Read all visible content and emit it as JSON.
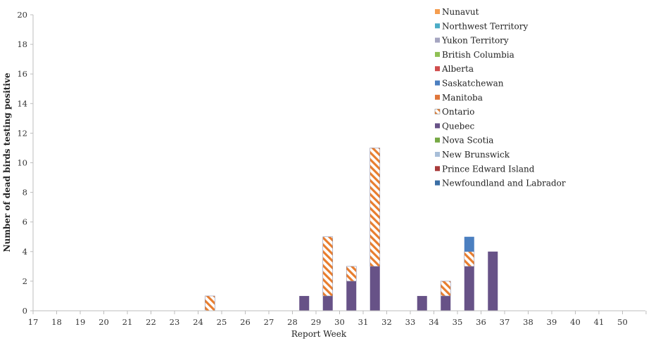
{
  "chart_data": {
    "type": "bar",
    "stacked": true,
    "title": "",
    "xlabel": "Report Week",
    "ylabel": "Number of dead birds testing positive",
    "ylim": [
      0,
      20
    ],
    "yticks": [
      0,
      2,
      4,
      6,
      8,
      10,
      12,
      14,
      16,
      18,
      20
    ],
    "grid": false,
    "legend_position": "top-right",
    "categories": [
      "17",
      "18",
      "19",
      "20",
      "21",
      "22",
      "23",
      "24",
      "25",
      "26",
      "27",
      "28",
      "29",
      "30",
      "31",
      "32",
      "33",
      "34",
      "35",
      "36",
      "37",
      "38",
      "39",
      "40",
      "41",
      "50"
    ],
    "series": [
      {
        "name": "Quebec",
        "color": "#675287",
        "pattern": "solid",
        "values": [
          0,
          0,
          0,
          0,
          0,
          0,
          0,
          0,
          0,
          0,
          0,
          1,
          1,
          2,
          3,
          0,
          1,
          1,
          3,
          4,
          0,
          0,
          0,
          0,
          0,
          0
        ]
      },
      {
        "name": "Ontario",
        "color": "#e87d2e",
        "pattern": "hatch",
        "values": [
          0,
          0,
          0,
          0,
          0,
          0,
          0,
          1,
          0,
          0,
          0,
          0,
          4,
          1,
          8,
          0,
          0,
          1,
          1,
          0,
          0,
          0,
          0,
          0,
          0,
          0
        ]
      },
      {
        "name": "Saskatchewan",
        "color": "#4b7fc0",
        "pattern": "solid",
        "values": [
          0,
          0,
          0,
          0,
          0,
          0,
          0,
          0,
          0,
          0,
          0,
          0,
          0,
          0,
          0,
          0,
          0,
          0,
          1,
          0,
          0,
          0,
          0,
          0,
          0,
          0
        ]
      }
    ],
    "legend": [
      {
        "name": "Nunavut",
        "color": "#f59d4f",
        "pattern": "solid"
      },
      {
        "name": "Northwest Territory",
        "color": "#4bacc6",
        "pattern": "solid"
      },
      {
        "name": "Yukon Territory",
        "color": "#a5a5c0",
        "pattern": "solid"
      },
      {
        "name": "British Columbia",
        "color": "#8fc054",
        "pattern": "solid"
      },
      {
        "name": "Alberta",
        "color": "#d04c4c",
        "pattern": "solid"
      },
      {
        "name": "Saskatchewan",
        "color": "#4b7fc0",
        "pattern": "solid"
      },
      {
        "name": "Manitoba",
        "color": "#e0763a",
        "pattern": "solid"
      },
      {
        "name": "Ontario",
        "color": "#e87d2e",
        "pattern": "hatch"
      },
      {
        "name": "Quebec",
        "color": "#675287",
        "pattern": "solid"
      },
      {
        "name": "Nova Scotia",
        "color": "#76a844",
        "pattern": "solid"
      },
      {
        "name": "New Brunswick",
        "color": "#a8bed8",
        "pattern": "solid"
      },
      {
        "name": "Prince Edward Island",
        "color": "#a83a3a",
        "pattern": "solid"
      },
      {
        "name": "Newfoundland and Labrador",
        "color": "#3a6ea5",
        "pattern": "solid"
      }
    ]
  }
}
